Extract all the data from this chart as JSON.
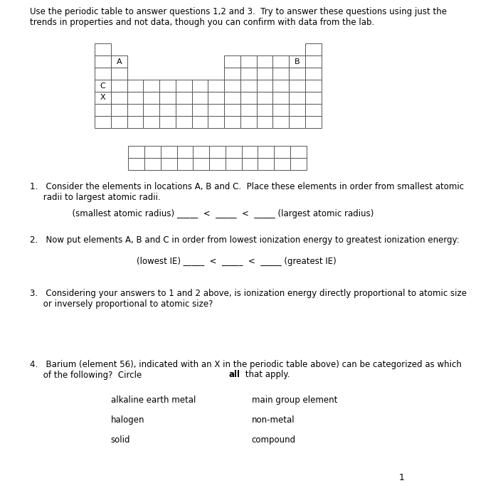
{
  "background_color": "#ffffff",
  "intro_text": "Use the periodic table to answer questions 1,2 and 3.  Try to answer these questions using just the\ntrends in properties and not data, though you can confirm with data from the lab.",
  "q1_text": "1.   Consider the elements in locations A, B and C.  Place these elements in order from smallest atomic\n     radii to largest atomic radii.",
  "q1_line": "          (smallest atomic radius) _____  <  _____  <  _____ (largest atomic radius)",
  "q2_text": "2.   Now put elements A, B and C in order from lowest ionization energy to greatest ionization energy:",
  "q2_line": "                    (lowest IE) _____  <  _____  <  _____ (greatest IE)",
  "q3_text": "3.   Considering your answers to 1 and 2 above, is ionization energy directly proportional to atomic size\n     or inversely proportional to atomic size?",
  "q4_text": "4.   Barium (element 56), indicated with an X in the periodic table above) can be categorized as which\n     of the following?  Circle ",
  "q4_bold": "all",
  "q4_text2": " that apply.",
  "q4_items_left": [
    "alkaline earth metal",
    "halogen",
    "solid"
  ],
  "q4_items_right": [
    "main group element",
    "non-metal",
    "compound"
  ],
  "page_number": "1",
  "grid_color": "#555555",
  "label_A": "A",
  "label_B": "B",
  "label_C": "C",
  "label_X": "X"
}
